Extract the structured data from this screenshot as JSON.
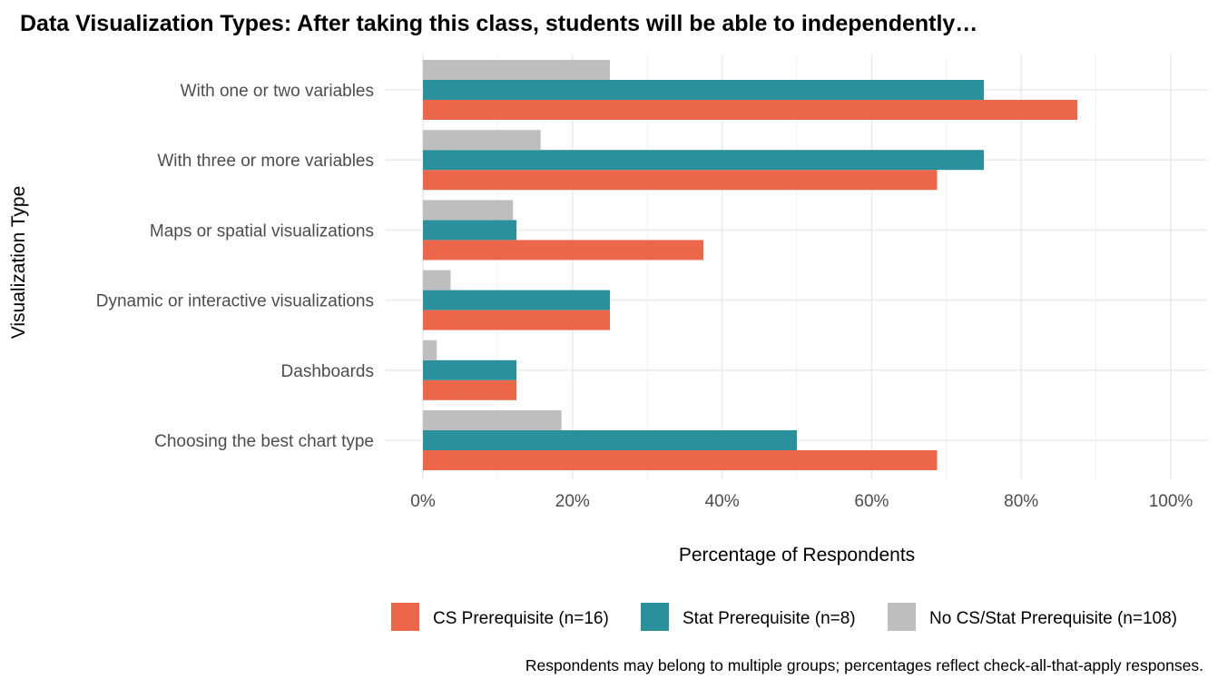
{
  "chart_data": {
    "type": "bar",
    "orientation": "horizontal",
    "title": "Data Visualization Types: After taking this class, students will be able to independently…",
    "xlabel": "Percentage of Respondents",
    "ylabel": "Visualization Type",
    "xlim": [
      0,
      100
    ],
    "x_ticks": [
      0,
      20,
      40,
      60,
      80,
      100
    ],
    "x_tick_labels": [
      "0%",
      "20%",
      "40%",
      "60%",
      "80%",
      "100%"
    ],
    "grid": true,
    "legend_position": "bottom",
    "categories": [
      "With one or two variables",
      "With three or more variables",
      "Maps or spatial visualizations",
      "Dynamic or interactive visualizations",
      "Dashboards",
      "Choosing the best chart type"
    ],
    "series": [
      {
        "name": "CS Prerequisite (n=16)",
        "color": "#EC674A",
        "values": [
          87.5,
          68.75,
          37.5,
          25.0,
          12.5,
          68.75
        ]
      },
      {
        "name": "Stat Prerequisite (n=8)",
        "color": "#2A909B",
        "values": [
          75.0,
          75.0,
          12.5,
          25.0,
          12.5,
          50.0
        ]
      },
      {
        "name": "No CS/Stat Prerequisite (n=108)",
        "color": "#BEBEBE",
        "values": [
          25.0,
          15.74,
          12.04,
          3.7,
          1.85,
          18.52
        ]
      }
    ],
    "caption": "Respondents may belong to multiple groups; percentages reflect check-all-that-apply responses."
  }
}
